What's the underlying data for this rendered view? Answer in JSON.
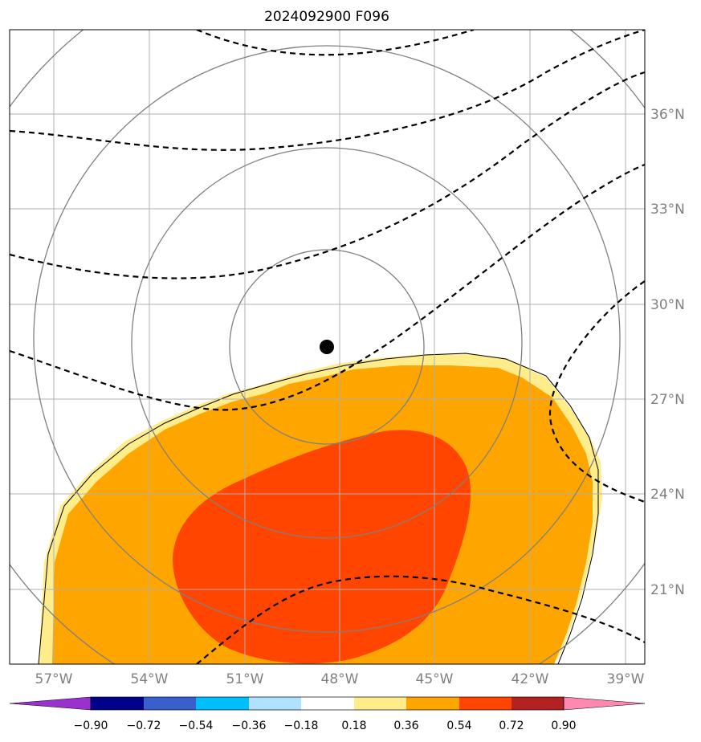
{
  "title": "2024092900 F096",
  "map": {
    "lon_labels": [
      "57°W",
      "54°W",
      "51°W",
      "48°W",
      "45°W",
      "42°W",
      "39°W"
    ],
    "lat_labels": [
      "21°N",
      "24°N",
      "27°N",
      "30°N",
      "33°N",
      "36°N"
    ],
    "storm_center": {
      "lon": "48.4°W",
      "lat": "28.7°N"
    },
    "gridline_color": "#b0b0b0",
    "range_ring_color": "#808080",
    "contour_style": "dashed black lines"
  },
  "colorbar": {
    "labels": [
      "−0.90",
      "−0.72",
      "−0.54",
      "−0.36",
      "−0.18",
      "0.18",
      "0.36",
      "0.54",
      "0.72",
      "0.90"
    ],
    "colors": [
      "#9932cc",
      "#00008b",
      "#3a5fcd",
      "#00bfff",
      "#b0e2ff",
      "#ffffff",
      "#ffec8b",
      "#ffa500",
      "#ff4500",
      "#b22222",
      "#ff88b0",
      "#ff88b0"
    ],
    "extend": "both"
  },
  "fill_levels": {
    "lightyellow": "#ffec8b",
    "orange": "#ffa500",
    "orangered": "#ff4500"
  }
}
